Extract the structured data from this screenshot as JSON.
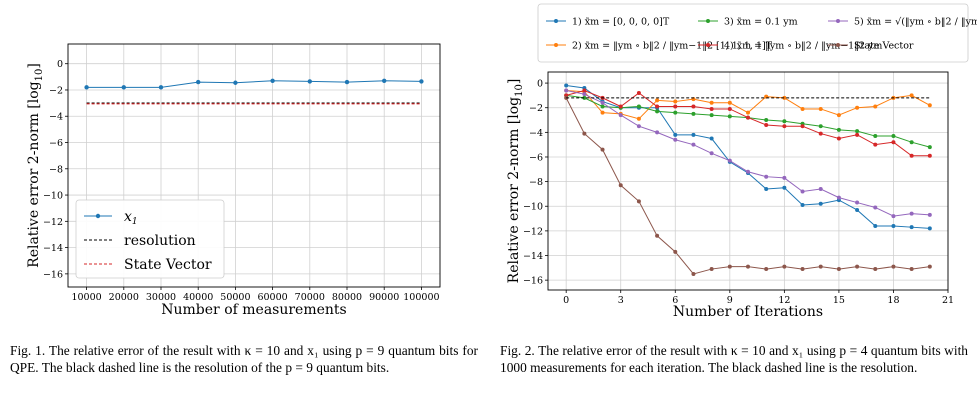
{
  "chart_data": [
    {
      "type": "line",
      "xlabel": "Number of measurements",
      "ylabel": "Relative error 2-norm [log",
      "ylabel_sub": "10",
      "ylabel_close": "]",
      "xlim": [
        5000,
        105000
      ],
      "ylim": [
        -17,
        1.5
      ],
      "xticks": [
        10000,
        20000,
        30000,
        40000,
        50000,
        60000,
        70000,
        80000,
        90000,
        100000
      ],
      "yticks": [
        0,
        -2,
        -4,
        -6,
        -8,
        -10,
        -12,
        -14,
        -16
      ],
      "grid": true,
      "legend_position": "lower-left",
      "series": [
        {
          "name": "x",
          "name_sub": "1",
          "style": "line-marker",
          "color": "#1f77b4",
          "x": [
            10000,
            20000,
            30000,
            40000,
            50000,
            60000,
            70000,
            80000,
            90000,
            100000
          ],
          "y": [
            -1.8,
            -1.8,
            -1.8,
            -1.4,
            -1.45,
            -1.3,
            -1.35,
            -1.4,
            -1.3,
            -1.35
          ]
        },
        {
          "name": "resolution",
          "style": "dashed",
          "color": "#000000",
          "x": [
            10000,
            100000
          ],
          "y": [
            -3.0,
            -3.0
          ]
        },
        {
          "name": "State Vector",
          "style": "dashed",
          "color": "#d62728",
          "x": [
            10000,
            100000
          ],
          "y": [
            -3.05,
            -3.05
          ]
        }
      ]
    },
    {
      "type": "line",
      "xlabel": "Number of Iterations",
      "ylabel": "Relative error 2-norm [log",
      "ylabel_sub": "10",
      "ylabel_close": "]",
      "xlim": [
        -1,
        21
      ],
      "ylim": [
        -16.8,
        0.9
      ],
      "xticks": [
        0,
        3,
        6,
        9,
        12,
        15,
        18,
        21
      ],
      "yticks": [
        0,
        -2,
        -4,
        -6,
        -8,
        -10,
        -12,
        -14,
        -16
      ],
      "grid": true,
      "legend_position": "top",
      "x": [
        0,
        1,
        2,
        3,
        4,
        5,
        6,
        7,
        8,
        9,
        10,
        11,
        12,
        13,
        14,
        15,
        16,
        17,
        18,
        19,
        20
      ],
      "series": [
        {
          "name": "1) x̃m = [0, 0, 0, 0]T",
          "color": "#1f77b4",
          "values": [
            -0.2,
            -0.4,
            -1.5,
            -2.0,
            -2.0,
            -2.0,
            -4.2,
            -4.2,
            -4.5,
            -6.4,
            -7.3,
            -8.6,
            -8.5,
            -9.9,
            -9.8,
            -9.5,
            -10.3,
            -11.6,
            -11.6,
            -11.7,
            -11.8
          ]
        },
        {
          "name": "2) x̃m = ‖ym ∘ b‖2 / ‖ym−1‖2 [1, 1, 1, 1]T",
          "color": "#ff7f0e",
          "values": [
            -0.6,
            -0.7,
            -2.4,
            -2.5,
            -2.9,
            -1.4,
            -1.5,
            -1.3,
            -1.6,
            -1.6,
            -2.4,
            -1.1,
            -1.2,
            -2.1,
            -2.1,
            -2.6,
            -2.0,
            -1.9,
            -1.2,
            -1.0,
            -1.8
          ]
        },
        {
          "name": "3) x̃m = 0.1 ym",
          "color": "#2ca02c",
          "values": [
            -1.0,
            -1.2,
            -1.9,
            -2.0,
            -1.9,
            -2.3,
            -2.4,
            -2.5,
            -2.6,
            -2.7,
            -2.8,
            -3.0,
            -3.1,
            -3.3,
            -3.5,
            -3.8,
            -3.9,
            -4.3,
            -4.3,
            -4.8,
            -5.2
          ]
        },
        {
          "name": "4) x̃m = ‖ym ∘ b‖2 / ‖ym−1‖2 ym",
          "color": "#d62728",
          "values": [
            -1.0,
            -0.6,
            -1.2,
            -1.9,
            -0.8,
            -1.9,
            -1.9,
            -1.9,
            -2.1,
            -2.1,
            -2.8,
            -3.4,
            -3.5,
            -3.5,
            -4.1,
            -4.5,
            -4.2,
            -5.0,
            -4.8,
            -5.9,
            -5.9
          ]
        },
        {
          "name": "5) x̃m = √(‖ym ∘ b‖2 / ‖ym−1‖2) ym",
          "color": "#9467bd",
          "values": [
            -0.6,
            -0.9,
            -1.6,
            -2.6,
            -3.5,
            -4.0,
            -4.6,
            -5.0,
            -5.7,
            -6.3,
            -7.2,
            -7.6,
            -7.7,
            -8.8,
            -8.6,
            -9.3,
            -9.7,
            -10.1,
            -10.8,
            -10.6,
            -10.7
          ]
        },
        {
          "name": "State Vector",
          "color": "#8c564b",
          "values": [
            -1.2,
            -4.1,
            -5.4,
            -8.3,
            -9.6,
            -12.4,
            -13.7,
            -15.5,
            -15.1,
            -14.9,
            -14.9,
            -15.1,
            -14.9,
            -15.1,
            -14.9,
            -15.1,
            -14.9,
            -15.1,
            -14.9,
            -15.1,
            -14.9
          ]
        },
        {
          "name": "resolution",
          "style": "dashed",
          "color": "#000000",
          "values_const": -1.2
        }
      ]
    }
  ],
  "captions": {
    "fig1": "Fig. 1.  The relative error of the result with κ = 10 and x₁ using p = 9 quantum bits for QPE. The black dashed line is the resolution of the p = 9 quantum bits.",
    "fig2": "Fig. 2.  The relative error of the result with κ = 10 and x₁ using p = 4 quantum bits with 1000 measurements for each iteration. The black dashed line is the resolution."
  }
}
